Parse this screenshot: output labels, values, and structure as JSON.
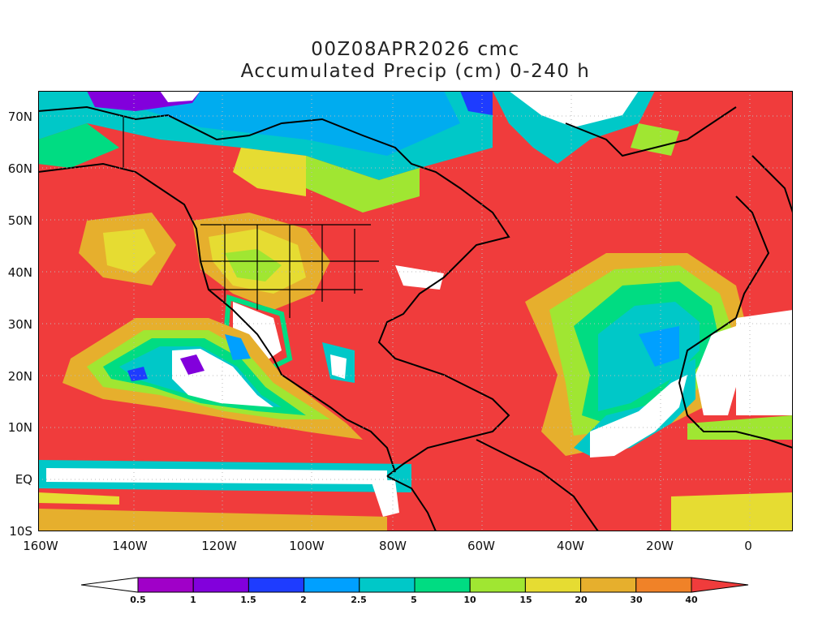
{
  "header": {
    "title_line1": "00Z08APR2026 cmc",
    "title_line2": "Accumulated Precip (cm) 0-240 h"
  },
  "map": {
    "lat_labels": [
      "70N",
      "60N",
      "50N",
      "40N",
      "30N",
      "20N",
      "10N",
      "EQ",
      "10S"
    ],
    "lon_labels": [
      "160W",
      "140W",
      "120W",
      "100W",
      "80W",
      "60W",
      "40W",
      "20W",
      "0"
    ],
    "background_fill": "#f03c3c",
    "gridlines": "dotted"
  },
  "legend": {
    "labels": [
      "0.5",
      "1",
      "1.5",
      "2",
      "2.5",
      "5",
      "10",
      "15",
      "20",
      "30",
      "40"
    ],
    "colors": [
      "#ffffff",
      "#a000c8",
      "#8200dc",
      "#1e3cff",
      "#00a0ff",
      "#00c8c8",
      "#00dc82",
      "#a0e632",
      "#e6dc32",
      "#e6af2d",
      "#f08228",
      "#f03c3c"
    ]
  }
}
